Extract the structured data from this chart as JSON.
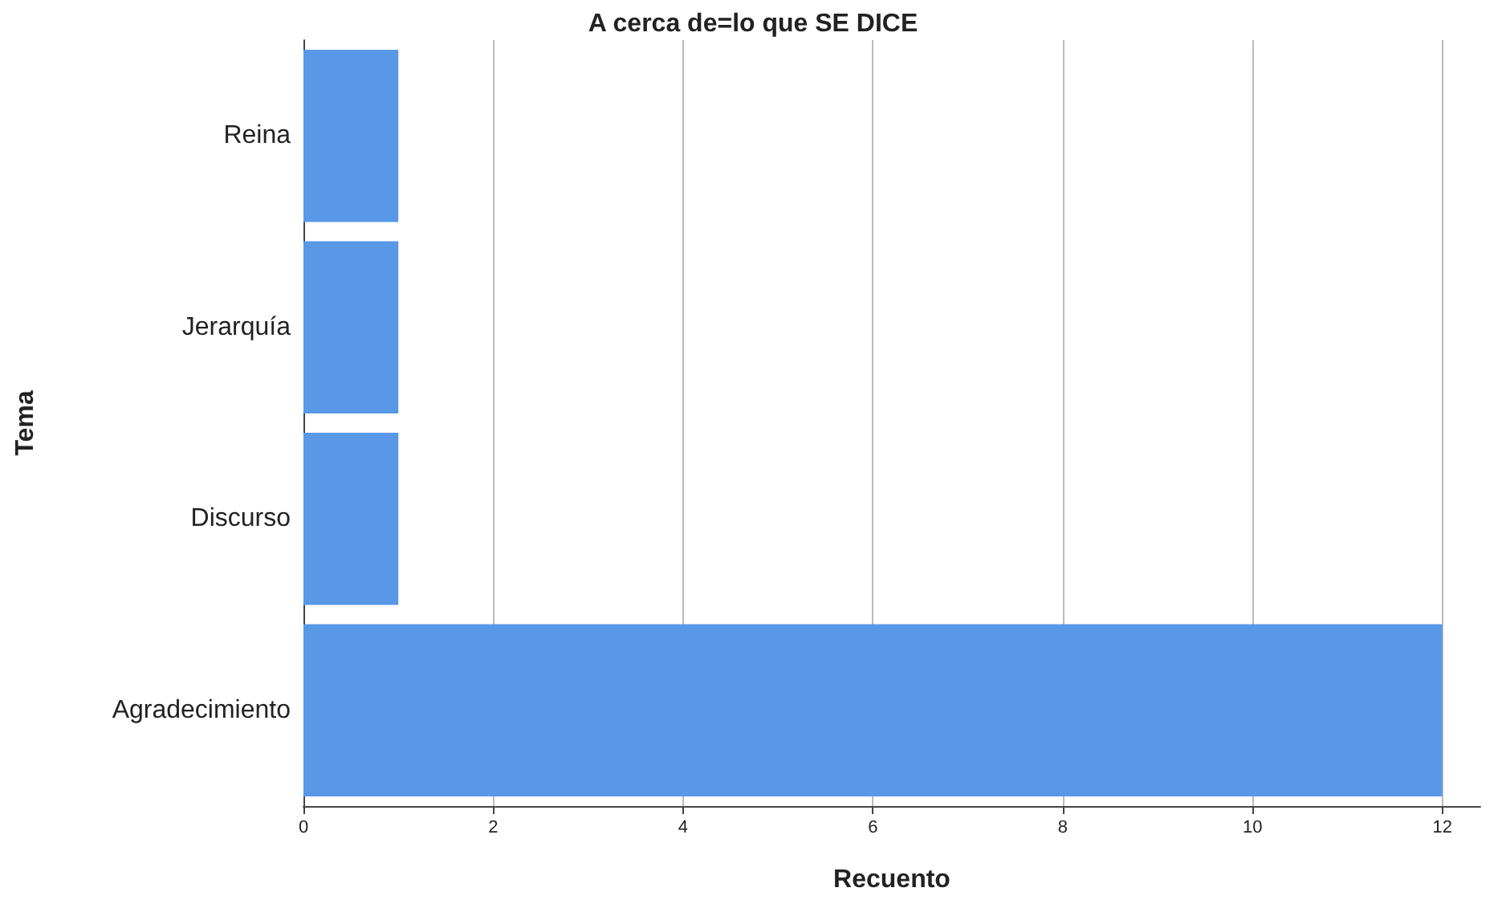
{
  "chart_data": {
    "type": "bar",
    "orientation": "horizontal",
    "title": "A cerca de=lo que SE DICE",
    "xlabel": "Recuento",
    "ylabel": "Tema",
    "categories": [
      "Reina",
      "Jerarquía",
      "Discurso",
      "Agradecimiento"
    ],
    "values": [
      1,
      1,
      1,
      12
    ],
    "color": "#5898e6",
    "xlim": [
      0,
      12.4
    ],
    "xticks": [
      0,
      2,
      4,
      6,
      8,
      10,
      12
    ],
    "grid": "x"
  }
}
